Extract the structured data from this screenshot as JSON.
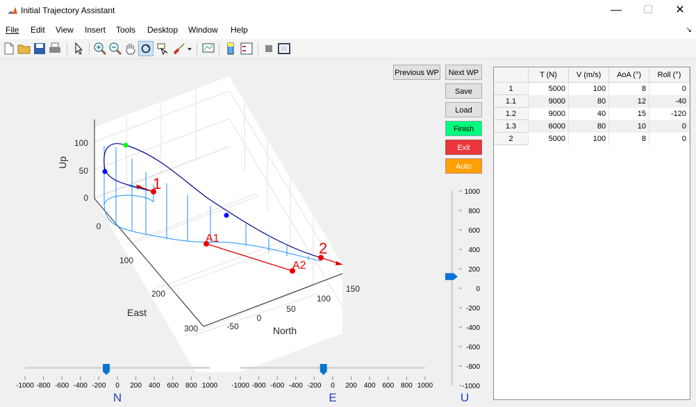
{
  "window": {
    "title": "Initial Trajectory Assistant",
    "minimize": "—",
    "maximize": "☐",
    "close": "✕"
  },
  "menu": [
    "File",
    "Edit",
    "View",
    "Insert",
    "Tools",
    "Desktop",
    "Window",
    "Help"
  ],
  "toolbar_icons": [
    "new-file-icon",
    "open-folder-icon",
    "save-icon",
    "print-icon",
    "pointer-icon",
    "zoom-in-icon",
    "zoom-out-icon",
    "pan-hand-icon",
    "rotate-3d-icon",
    "data-cursor-icon",
    "brush-icon",
    "dropdown-arrow-icon",
    "link-plot-icon",
    "colorbar-icon",
    "legend-icon",
    "hide-plot-tools-icon",
    "show-plot-tools-icon"
  ],
  "buttons": {
    "previous_wp": "Previous WP",
    "next_wp": "Next WP",
    "save": "Save",
    "load": "Load",
    "finish": "Finish",
    "exit": "Exit",
    "auto": "Auto"
  },
  "colors": {
    "finish": "#00ff7f",
    "exit": "#e8363c",
    "auto": "#ff9f00",
    "slider_thumb": "#0a74d6",
    "trajectory": "#00008b",
    "projection": "#1e90ff",
    "marker_red": "#e00000"
  },
  "table": {
    "headers": [
      "",
      "T (N)",
      "V (m/s)",
      "AoA (°)",
      "Roll (°)"
    ],
    "rows": [
      [
        "1",
        "5000",
        "100",
        "8",
        "0"
      ],
      [
        "1.1",
        "9000",
        "80",
        "12",
        "-40"
      ],
      [
        "1.2",
        "9000",
        "40",
        "15",
        "-120"
      ],
      [
        "1.3",
        "6000",
        "80",
        "10",
        "0"
      ],
      [
        "2",
        "5000",
        "100",
        "8",
        "0"
      ]
    ]
  },
  "plot": {
    "axis_labels": {
      "up": "Up",
      "east": "East",
      "north": "North"
    },
    "up_ticks": [
      "100",
      "50",
      "0"
    ],
    "east_ticks": [
      "0",
      "100",
      "200",
      "300"
    ],
    "north_ticks": [
      "-50",
      "0",
      "50",
      "100",
      "150"
    ],
    "waypoint_labels": [
      "1",
      "2",
      "A1",
      "A2"
    ]
  },
  "sliders": {
    "n": {
      "label": "N",
      "ticks": [
        "-1000",
        "-800",
        "-600",
        "-400",
        "-200",
        "0",
        "200",
        "400",
        "600",
        "800",
        "1000"
      ],
      "value": -120
    },
    "e": {
      "label": "E",
      "ticks": [
        "-1000",
        "-800",
        "-600",
        "-400",
        "-200",
        "0",
        "200",
        "400",
        "600",
        "800",
        "1000"
      ],
      "value": -100
    },
    "u": {
      "label": "U",
      "ticks": [
        "1000",
        "800",
        "600",
        "400",
        "200",
        "0",
        "-200",
        "-400",
        "-600",
        "-800",
        "-1000"
      ],
      "value": 120
    }
  }
}
